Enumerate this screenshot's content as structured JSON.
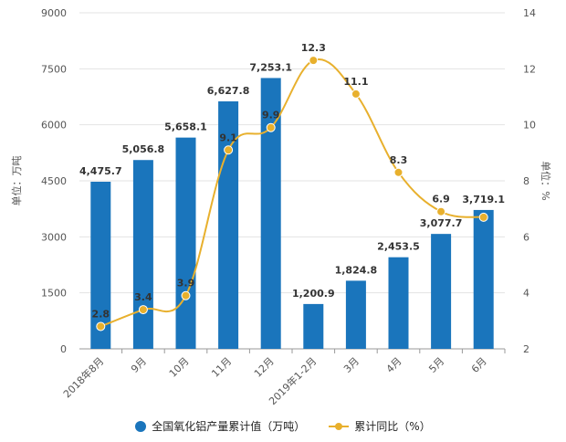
{
  "chart_data": {
    "type": "bar+line",
    "categories": [
      "2018年8月",
      "9月",
      "10月",
      "11月",
      "12月",
      "2019年1-2月",
      "3月",
      "4月",
      "5月",
      "6月"
    ],
    "series": [
      {
        "name": "全国氧化铝产量累计值（万吨）",
        "type": "bar",
        "axis": "left",
        "color": "#1a75bc",
        "values": [
          4475.7,
          5056.8,
          5658.1,
          6627.8,
          7253.1,
          1200.9,
          1824.8,
          2453.5,
          3077.7,
          3719.1
        ],
        "labels": [
          "4,475.7",
          "5,056.8",
          "5,658.1",
          "6,627.8",
          "7,253.1",
          "1,200.9",
          "1,824.8",
          "2,453.5",
          "3,077.7",
          "3,719.1"
        ]
      },
      {
        "name": "累计同比（%）",
        "type": "line",
        "axis": "right",
        "color": "#e8b02d",
        "values": [
          2.8,
          3.4,
          3.9,
          9.1,
          9.9,
          12.3,
          11.1,
          8.3,
          6.9,
          6.7
        ],
        "labels": [
          "2.8",
          "3.4",
          "3.9",
          "9.1",
          "9.9",
          "12.3",
          "11.1",
          "8.3",
          "6.9",
          ""
        ]
      }
    ],
    "ylabel": "单位：万吨",
    "y2label": "单位：%",
    "ylim": [
      0,
      9000
    ],
    "yticks": [
      "0",
      "1500",
      "3000",
      "4500",
      "6000",
      "7500",
      "9000"
    ],
    "y2lim": [
      2,
      14
    ],
    "y2ticks": [
      "2",
      "4",
      "6",
      "8",
      "10",
      "12",
      "14"
    ],
    "grid": true,
    "legend": "bottom"
  }
}
